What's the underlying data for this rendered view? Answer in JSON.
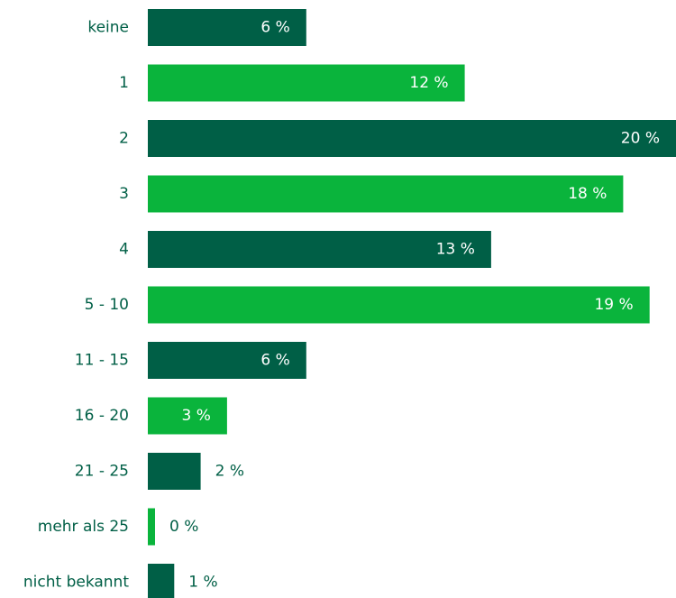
{
  "chart_data": {
    "type": "bar",
    "categories": [
      "keine",
      "1",
      "2",
      "3",
      "4",
      "5 - 10",
      "11 - 15",
      "16 - 20",
      "21 - 25",
      "mehr als 25",
      "nicht bekannt"
    ],
    "values": [
      6,
      12,
      20,
      18,
      13,
      19,
      6,
      3,
      2,
      0,
      1
    ],
    "value_labels": [
      "6 %",
      "12 %",
      "20 %",
      "18 %",
      "13 %",
      "19 %",
      "6 %",
      "3 %",
      "2 %",
      "0 %",
      "1 %"
    ],
    "colors": [
      "#005f46",
      "#0ab43c",
      "#005f46",
      "#0ab43c",
      "#005f46",
      "#0ab43c",
      "#005f46",
      "#0ab43c",
      "#005f46",
      "#0ab43c",
      "#005f46"
    ]
  }
}
